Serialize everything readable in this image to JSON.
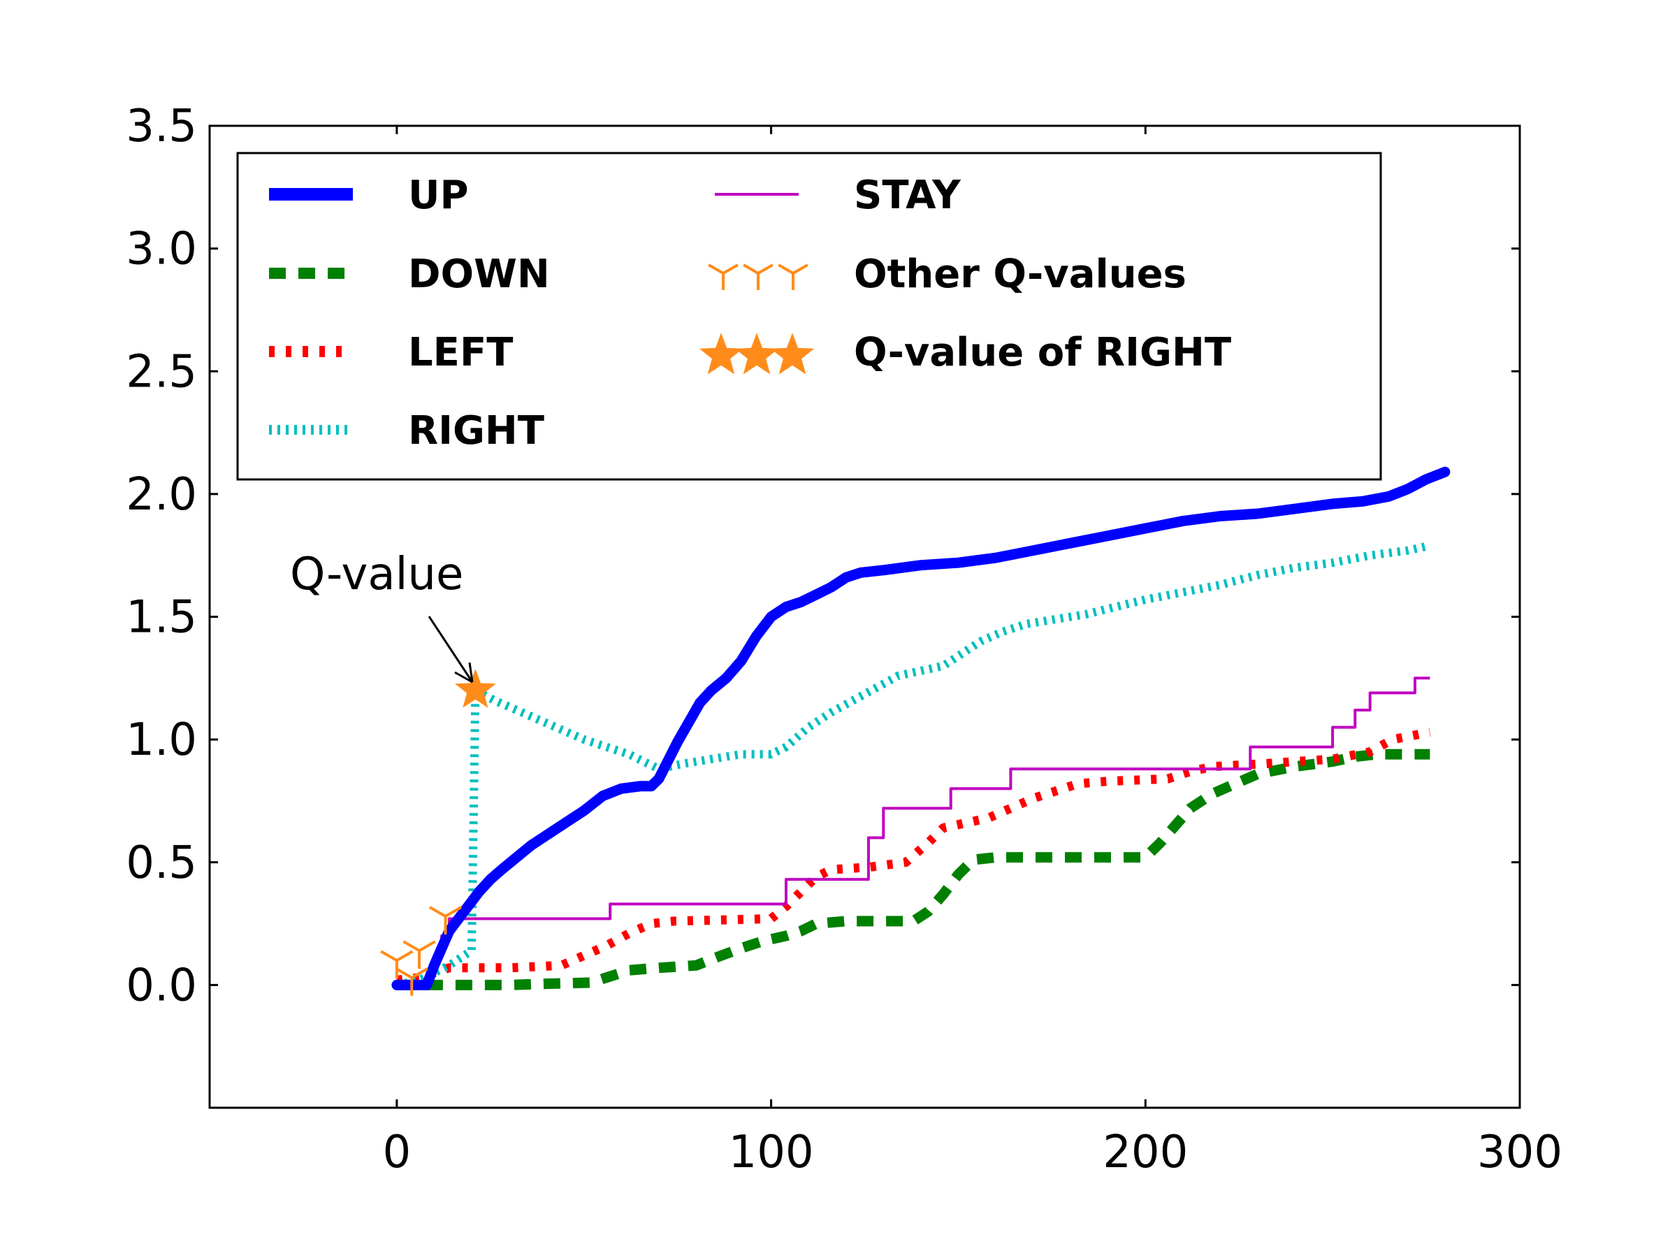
{
  "chart_data": {
    "type": "line",
    "title": "",
    "xlabel": "",
    "ylabel": "",
    "xlim": [
      -50,
      300
    ],
    "ylim": [
      -0.5,
      3.5
    ],
    "xticks": [
      0,
      100,
      200,
      300
    ],
    "yticks": [
      0.0,
      0.5,
      1.0,
      1.5,
      2.0,
      2.5,
      3.0,
      3.5
    ],
    "xtick_labels": [
      "0",
      "100",
      "200",
      "300"
    ],
    "ytick_labels": [
      "0.0",
      "0.5",
      "1.0",
      "1.5",
      "2.0",
      "2.5",
      "3.0",
      "3.5"
    ],
    "grid": false,
    "legend": {
      "position": "top-left",
      "columns": 2,
      "entries": [
        "UP",
        "DOWN",
        "LEFT",
        "RIGHT",
        "STAY",
        "Other Q-values",
        "Q-value of RIGHT"
      ]
    },
    "series": [
      {
        "name": "UP",
        "style": "solid",
        "color": "#0000ff",
        "points": [
          [
            0,
            0
          ],
          [
            8,
            0
          ],
          [
            10,
            0.08
          ],
          [
            12,
            0.15
          ],
          [
            14,
            0.22
          ],
          [
            16,
            0.26
          ],
          [
            18,
            0.3
          ],
          [
            20,
            0.34
          ],
          [
            22,
            0.38
          ],
          [
            25,
            0.43
          ],
          [
            28,
            0.47
          ],
          [
            32,
            0.52
          ],
          [
            36,
            0.57
          ],
          [
            40,
            0.61
          ],
          [
            45,
            0.66
          ],
          [
            50,
            0.71
          ],
          [
            55,
            0.77
          ],
          [
            60,
            0.8
          ],
          [
            65,
            0.81
          ],
          [
            68,
            0.81
          ],
          [
            70,
            0.84
          ],
          [
            72,
            0.9
          ],
          [
            75,
            0.99
          ],
          [
            78,
            1.07
          ],
          [
            81,
            1.15
          ],
          [
            84,
            1.2
          ],
          [
            88,
            1.25
          ],
          [
            92,
            1.32
          ],
          [
            96,
            1.42
          ],
          [
            100,
            1.5
          ],
          [
            104,
            1.54
          ],
          [
            108,
            1.56
          ],
          [
            112,
            1.59
          ],
          [
            116,
            1.62
          ],
          [
            120,
            1.66
          ],
          [
            124,
            1.68
          ],
          [
            130,
            1.69
          ],
          [
            140,
            1.71
          ],
          [
            150,
            1.72
          ],
          [
            160,
            1.74
          ],
          [
            170,
            1.77
          ],
          [
            180,
            1.8
          ],
          [
            190,
            1.83
          ],
          [
            200,
            1.86
          ],
          [
            210,
            1.89
          ],
          [
            220,
            1.91
          ],
          [
            230,
            1.92
          ],
          [
            240,
            1.94
          ],
          [
            250,
            1.96
          ],
          [
            258,
            1.97
          ],
          [
            265,
            1.99
          ],
          [
            270,
            2.02
          ],
          [
            275,
            2.06
          ],
          [
            280,
            2.09
          ]
        ]
      },
      {
        "name": "DOWN",
        "style": "dashed",
        "color": "#008000",
        "points": [
          [
            0,
            0
          ],
          [
            30,
            0
          ],
          [
            40,
            0.005
          ],
          [
            52,
            0.01
          ],
          [
            56,
            0.03
          ],
          [
            62,
            0.06
          ],
          [
            70,
            0.07
          ],
          [
            80,
            0.08
          ],
          [
            85,
            0.11
          ],
          [
            92,
            0.15
          ],
          [
            98,
            0.18
          ],
          [
            104,
            0.2
          ],
          [
            108,
            0.22
          ],
          [
            112,
            0.25
          ],
          [
            120,
            0.26
          ],
          [
            138,
            0.26
          ],
          [
            142,
            0.3
          ],
          [
            146,
            0.37
          ],
          [
            150,
            0.45
          ],
          [
            154,
            0.51
          ],
          [
            160,
            0.52
          ],
          [
            200,
            0.52
          ],
          [
            204,
            0.58
          ],
          [
            208,
            0.65
          ],
          [
            212,
            0.72
          ],
          [
            218,
            0.78
          ],
          [
            224,
            0.82
          ],
          [
            230,
            0.86
          ],
          [
            240,
            0.89
          ],
          [
            250,
            0.91
          ],
          [
            256,
            0.93
          ],
          [
            262,
            0.94
          ],
          [
            276,
            0.94
          ]
        ]
      },
      {
        "name": "LEFT",
        "style": "dotted",
        "color": "#ff0000",
        "points": [
          [
            0,
            0.02
          ],
          [
            6,
            0.03
          ],
          [
            10,
            0.05
          ],
          [
            14,
            0.07
          ],
          [
            30,
            0.07
          ],
          [
            44,
            0.08
          ],
          [
            50,
            0.12
          ],
          [
            56,
            0.16
          ],
          [
            62,
            0.21
          ],
          [
            68,
            0.25
          ],
          [
            74,
            0.26
          ],
          [
            100,
            0.27
          ],
          [
            104,
            0.32
          ],
          [
            108,
            0.38
          ],
          [
            112,
            0.44
          ],
          [
            116,
            0.47
          ],
          [
            126,
            0.48
          ],
          [
            136,
            0.5
          ],
          [
            142,
            0.58
          ],
          [
            146,
            0.64
          ],
          [
            152,
            0.66
          ],
          [
            158,
            0.68
          ],
          [
            164,
            0.72
          ],
          [
            170,
            0.76
          ],
          [
            176,
            0.79
          ],
          [
            182,
            0.82
          ],
          [
            190,
            0.83
          ],
          [
            206,
            0.84
          ],
          [
            212,
            0.87
          ],
          [
            218,
            0.89
          ],
          [
            230,
            0.9
          ],
          [
            250,
            0.92
          ],
          [
            260,
            0.95
          ],
          [
            266,
            1.0
          ],
          [
            276,
            1.03
          ]
        ]
      },
      {
        "name": "RIGHT",
        "style": "dotted",
        "color": "#00bfbf",
        "points": [
          [
            0,
            0
          ],
          [
            6,
            0.02
          ],
          [
            10,
            0.05
          ],
          [
            14,
            0.08
          ],
          [
            18,
            0.12
          ],
          [
            20,
            0.14
          ],
          [
            21,
            1.2
          ],
          [
            26,
            1.16
          ],
          [
            32,
            1.12
          ],
          [
            38,
            1.08
          ],
          [
            44,
            1.04
          ],
          [
            50,
            1.0
          ],
          [
            56,
            0.97
          ],
          [
            62,
            0.94
          ],
          [
            66,
            0.91
          ],
          [
            70,
            0.88
          ],
          [
            76,
            0.9
          ],
          [
            84,
            0.92
          ],
          [
            92,
            0.94
          ],
          [
            100,
            0.94
          ],
          [
            104,
            0.97
          ],
          [
            110,
            1.05
          ],
          [
            116,
            1.11
          ],
          [
            122,
            1.16
          ],
          [
            128,
            1.21
          ],
          [
            134,
            1.26
          ],
          [
            140,
            1.28
          ],
          [
            146,
            1.3
          ],
          [
            150,
            1.34
          ],
          [
            156,
            1.4
          ],
          [
            162,
            1.44
          ],
          [
            168,
            1.47
          ],
          [
            176,
            1.49
          ],
          [
            184,
            1.51
          ],
          [
            192,
            1.54
          ],
          [
            200,
            1.57
          ],
          [
            210,
            1.6
          ],
          [
            220,
            1.63
          ],
          [
            230,
            1.67
          ],
          [
            240,
            1.7
          ],
          [
            250,
            1.72
          ],
          [
            260,
            1.75
          ],
          [
            270,
            1.77
          ],
          [
            276,
            1.79
          ]
        ]
      },
      {
        "name": "STAY",
        "style": "solid-thin",
        "color": "#bf00bf",
        "points": [
          [
            0,
            0
          ],
          [
            8,
            0
          ],
          [
            8,
            0.04
          ],
          [
            10,
            0.04
          ],
          [
            10,
            0.12
          ],
          [
            12,
            0.12
          ],
          [
            12,
            0.2
          ],
          [
            14,
            0.2
          ],
          [
            14,
            0.27
          ],
          [
            57,
            0.27
          ],
          [
            57,
            0.33
          ],
          [
            104,
            0.33
          ],
          [
            104,
            0.43
          ],
          [
            126,
            0.43
          ],
          [
            126,
            0.6
          ],
          [
            130,
            0.6
          ],
          [
            130,
            0.72
          ],
          [
            148,
            0.72
          ],
          [
            148,
            0.8
          ],
          [
            164,
            0.8
          ],
          [
            164,
            0.88
          ],
          [
            228,
            0.88
          ],
          [
            228,
            0.97
          ],
          [
            250,
            0.97
          ],
          [
            250,
            1.05
          ],
          [
            256,
            1.05
          ],
          [
            256,
            1.12
          ],
          [
            260,
            1.12
          ],
          [
            260,
            1.19
          ],
          [
            272,
            1.19
          ],
          [
            272,
            1.25
          ],
          [
            276,
            1.25
          ]
        ]
      }
    ],
    "markers": {
      "other_q_values": {
        "label": "Other Q-values",
        "color": "#ff8c1a",
        "shape": "tri-down",
        "points": [
          [
            0,
            0.1
          ],
          [
            4,
            0.03
          ],
          [
            6,
            0.14
          ],
          [
            13,
            0.28
          ]
        ]
      },
      "q_value_of_right": {
        "label": "Q-value of RIGHT",
        "color": "#ff8c1a",
        "shape": "star",
        "points": [
          [
            21,
            1.2
          ]
        ]
      }
    },
    "annotations": [
      {
        "text": "Q-value",
        "target": [
          21,
          1.2
        ],
        "text_at": [
          2,
          1.67
        ]
      }
    ]
  }
}
